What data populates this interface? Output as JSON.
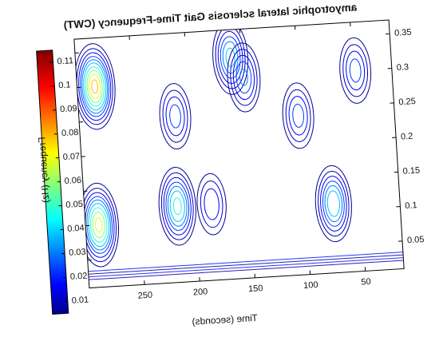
{
  "chart_data": {
    "type": "heatmap",
    "subtype": "contour",
    "title": "amyotrophic lateral sclerosis Gait Time-Frequency (CWT)",
    "xlabel": "Time (seconds)",
    "ylabel": "Frequency (Hz)",
    "x_ticks": [
      "50",
      "100",
      "150",
      "200",
      "250"
    ],
    "x_tick_values": [
      50,
      100,
      150,
      200,
      250
    ],
    "y_ticks": [
      "0.05",
      "0.1",
      "0.15",
      "0.2",
      "0.25",
      "0.3",
      "0.35"
    ],
    "y_tick_values": [
      0.05,
      0.1,
      0.15,
      0.2,
      0.25,
      0.3,
      0.35
    ],
    "xlim": [
      15,
      300
    ],
    "ylim": [
      0.01,
      0.37
    ],
    "colorbar": {
      "ticks": [
        "0.01",
        "0.02",
        "0.03",
        "0.04",
        "0.05",
        "0.06",
        "0.07",
        "0.08",
        "0.09",
        "0.1",
        "0.11"
      ],
      "tick_values": [
        0.01,
        0.02,
        0.03,
        0.04,
        0.05,
        0.06,
        0.07,
        0.08,
        0.09,
        0.1,
        0.11
      ],
      "range": [
        0.005,
        0.115
      ],
      "colormap": "jet"
    },
    "grid": false,
    "notes": "Figure is rendered mirrored horizontally and slightly rotated; colorbar appears on the left.",
    "peaks": [
      {
        "time": 288,
        "freq": 0.1,
        "value": 0.075
      },
      {
        "time": 284,
        "freq": 0.3,
        "value": 0.085
      },
      {
        "time": 216,
        "freq": 0.12,
        "value": 0.055
      },
      {
        "time": 213,
        "freq": 0.25,
        "value": 0.03
      },
      {
        "time": 160,
        "freq": 0.33,
        "value": 0.045
      },
      {
        "time": 149,
        "freq": 0.3,
        "value": 0.035
      },
      {
        "time": 102,
        "freq": 0.24,
        "value": 0.03
      },
      {
        "time": 75,
        "freq": 0.11,
        "value": 0.05
      },
      {
        "time": 48,
        "freq": 0.3,
        "value": 0.03
      },
      {
        "time": 185,
        "freq": 0.12,
        "value": 0.025
      }
    ]
  }
}
